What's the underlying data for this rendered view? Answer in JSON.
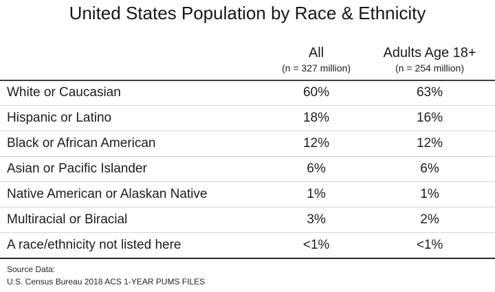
{
  "title": "United States Population by Race & Ethnicity",
  "table": {
    "columns": {
      "all": {
        "label": "All",
        "sub": "(n = 327 million)"
      },
      "adults": {
        "label": "Adults Age 18+",
        "sub": "(n = 254 million)"
      }
    },
    "rows": [
      {
        "label": "White or Caucasian",
        "all": "60%",
        "adults": "63%"
      },
      {
        "label": "Hispanic or Latino",
        "all": "18%",
        "adults": "16%"
      },
      {
        "label": "Black or African American",
        "all": "12%",
        "adults": "12%"
      },
      {
        "label": "Asian or Pacific Islander",
        "all": "6%",
        "adults": "6%"
      },
      {
        "label": "Native American or Alaskan Native",
        "all": "1%",
        "adults": "1%"
      },
      {
        "label": "Multiracial or Biracial",
        "all": "3%",
        "adults": "2%"
      },
      {
        "label": "A race/ethnicity not listed here",
        "all": "<1%",
        "adults": "<1%"
      }
    ]
  },
  "source": {
    "label": "Source Data:",
    "text": "U.S. Census Bureau 2018 ACS 1-YEAR PUMS FILES"
  },
  "colors": {
    "text": "#1b1b1b",
    "border_dark": "#3d3d3d",
    "border_light": "#d5d5d5",
    "background": "#ffffff"
  },
  "chart_data": {
    "type": "table",
    "title": "United States Population by Race & Ethnicity",
    "categories": [
      "White or Caucasian",
      "Hispanic or Latino",
      "Black or African American",
      "Asian or Pacific Islander",
      "Native American or Alaskan Native",
      "Multiracial or Biracial",
      "A race/ethnicity not listed here"
    ],
    "series": [
      {
        "name": "All (n = 327 million)",
        "values": [
          "60%",
          "18%",
          "12%",
          "6%",
          "1%",
          "3%",
          "<1%"
        ]
      },
      {
        "name": "Adults Age 18+ (n = 254 million)",
        "values": [
          "63%",
          "16%",
          "12%",
          "6%",
          "1%",
          "2%",
          "<1%"
        ]
      }
    ],
    "source": "Source Data: U.S. Census Bureau 2018 ACS 1-YEAR PUMS FILES"
  }
}
